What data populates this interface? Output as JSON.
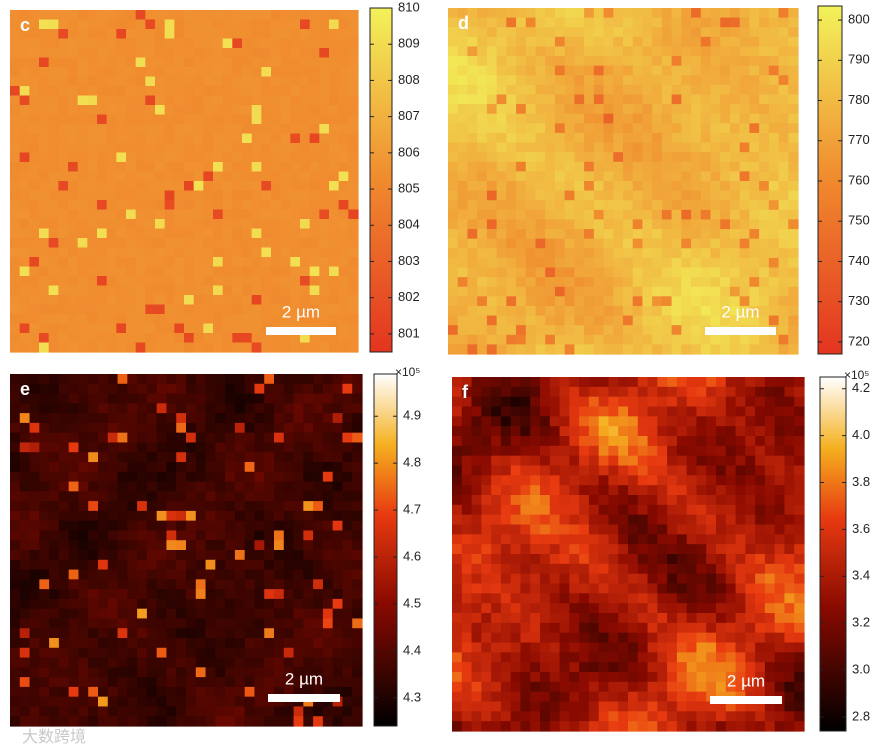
{
  "chart_data": [
    {
      "type": "heatmap",
      "panel_label": "c",
      "scale_bar": "2 µm",
      "colormap": "red-yellow",
      "clim": [
        800.5,
        810
      ],
      "cticks": [
        801,
        802,
        803,
        804,
        805,
        806,
        807,
        808,
        809,
        810
      ]
    },
    {
      "type": "heatmap",
      "panel_label": "d",
      "scale_bar": "2 µm",
      "colormap": "red-yellow",
      "clim": [
        717,
        803.5
      ],
      "cticks": [
        720,
        730,
        740,
        750,
        760,
        770,
        780,
        790,
        800
      ]
    },
    {
      "type": "heatmap",
      "panel_label": "e",
      "scale_bar": "2 µm",
      "colormap": "hot",
      "colorbar_multiplier": "×10⁵",
      "clim": [
        4.24,
        4.99
      ],
      "cticks": [
        4.3,
        4.4,
        4.5,
        4.6,
        4.7,
        4.8,
        4.9
      ]
    },
    {
      "type": "heatmap",
      "panel_label": "f",
      "scale_bar": "2 µm",
      "colormap": "hot",
      "colorbar_multiplier": "×10⁵",
      "clim": [
        2.74,
        4.25
      ],
      "cticks": [
        2.8,
        {
          "value": 3,
          "label": "3.0"
        },
        3.2,
        3.4,
        3.6,
        3.8,
        {
          "value": 4,
          "label": "4.0"
        },
        4.2
      ]
    }
  ],
  "watermark": "大数跨境"
}
